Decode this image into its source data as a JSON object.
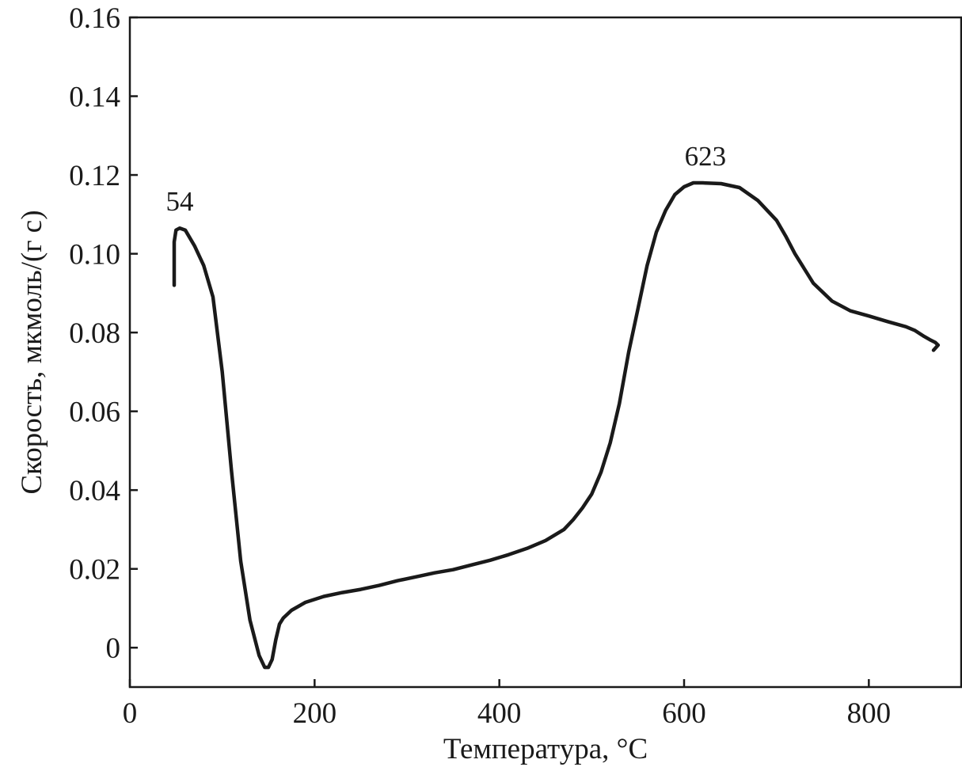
{
  "chart_data": {
    "type": "line",
    "title": "",
    "xlabel": "Температура, °C",
    "ylabel": "Скорость, мкмоль/(г с)",
    "xlim": [
      0,
      900
    ],
    "ylim": [
      -0.01,
      0.16
    ],
    "x_ticks": [
      0,
      200,
      400,
      600,
      800
    ],
    "x_tick_labels": [
      "0",
      "200",
      "400",
      "600",
      "800"
    ],
    "y_ticks": [
      0,
      0.02,
      0.04,
      0.06,
      0.08,
      0.1,
      0.12,
      0.14,
      0.16
    ],
    "y_tick_labels": [
      "0",
      "0.02",
      "0.04",
      "0.06",
      "0.08",
      "0.10",
      "0.12",
      "0.14",
      "0.16"
    ],
    "grid": false,
    "series": [
      {
        "x": [
          48,
          48,
          50,
          54,
          60,
          70,
          80,
          90,
          100,
          110,
          120,
          130,
          140,
          146,
          150,
          154,
          158,
          162,
          166,
          175,
          190,
          210,
          230,
          250,
          270,
          290,
          310,
          330,
          350,
          370,
          390,
          410,
          430,
          450,
          470,
          480,
          490,
          500,
          510,
          520,
          530,
          540,
          550,
          560,
          570,
          580,
          590,
          600,
          610,
          620,
          640,
          660,
          680,
          700,
          710,
          720,
          740,
          760,
          780,
          800,
          820,
          840,
          850,
          860,
          866,
          872,
          875,
          870
        ],
        "y": [
          0.092,
          0.103,
          0.106,
          0.1065,
          0.106,
          0.102,
          0.097,
          0.089,
          0.07,
          0.045,
          0.022,
          0.007,
          -0.002,
          -0.005,
          -0.005,
          -0.003,
          0.002,
          0.006,
          0.0075,
          0.0095,
          0.0115,
          0.013,
          0.014,
          0.0148,
          0.0158,
          0.017,
          0.018,
          0.019,
          0.0198,
          0.021,
          0.0222,
          0.0236,
          0.0252,
          0.0272,
          0.03,
          0.0325,
          0.0355,
          0.039,
          0.0445,
          0.052,
          0.062,
          0.075,
          0.086,
          0.097,
          0.1055,
          0.111,
          0.115,
          0.117,
          0.118,
          0.118,
          0.1178,
          0.1168,
          0.1135,
          0.1085,
          0.1045,
          0.1,
          0.0925,
          0.088,
          0.0855,
          0.0842,
          0.0828,
          0.0815,
          0.0805,
          0.079,
          0.0782,
          0.0775,
          0.0768,
          0.0755
        ]
      }
    ],
    "annotations": [
      {
        "text": "54",
        "x": 54,
        "y": 0.1065
      },
      {
        "text": "623",
        "x": 623,
        "y": 0.118
      }
    ]
  }
}
